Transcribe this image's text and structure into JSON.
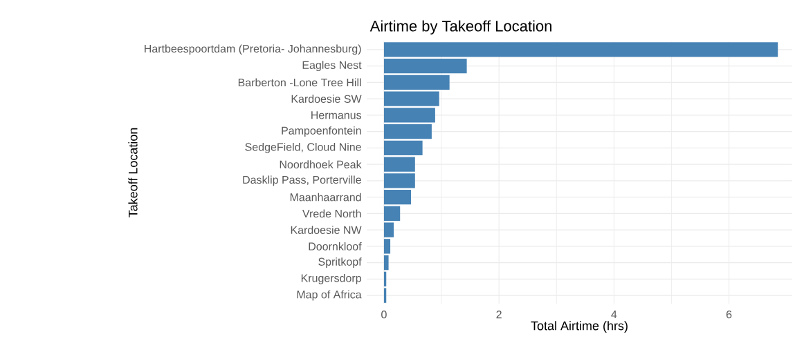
{
  "chart_data": {
    "type": "bar",
    "orientation": "horizontal",
    "title": "Airtime by Takeoff Location",
    "xlabel": "Total Airtime (hrs)",
    "ylabel": "Takeoff Location",
    "categories": [
      "Hartbeespoortdam (Pretoria- Johannesburg)",
      "Eagles Nest",
      "Barberton -Lone Tree  Hill",
      "Kardoesie SW",
      "Hermanus",
      "Pampoenfontein",
      "SedgeField, Cloud Nine",
      "Noordhoek Peak",
      "Dasklip Pass, Porterville",
      "Maanhaarrand",
      "Vrede North",
      "Kardoesie NW",
      "Doornkloof",
      "Spritkopf",
      "Krugersdorp",
      "Map of Africa"
    ],
    "values": [
      6.85,
      1.44,
      1.14,
      0.96,
      0.89,
      0.83,
      0.67,
      0.54,
      0.54,
      0.47,
      0.28,
      0.17,
      0.11,
      0.08,
      0.04,
      0.04
    ],
    "color": "#4682b4",
    "xlim": [
      -0.3,
      7.1
    ],
    "xticks": [
      0,
      2,
      4,
      6
    ],
    "grid": true
  }
}
